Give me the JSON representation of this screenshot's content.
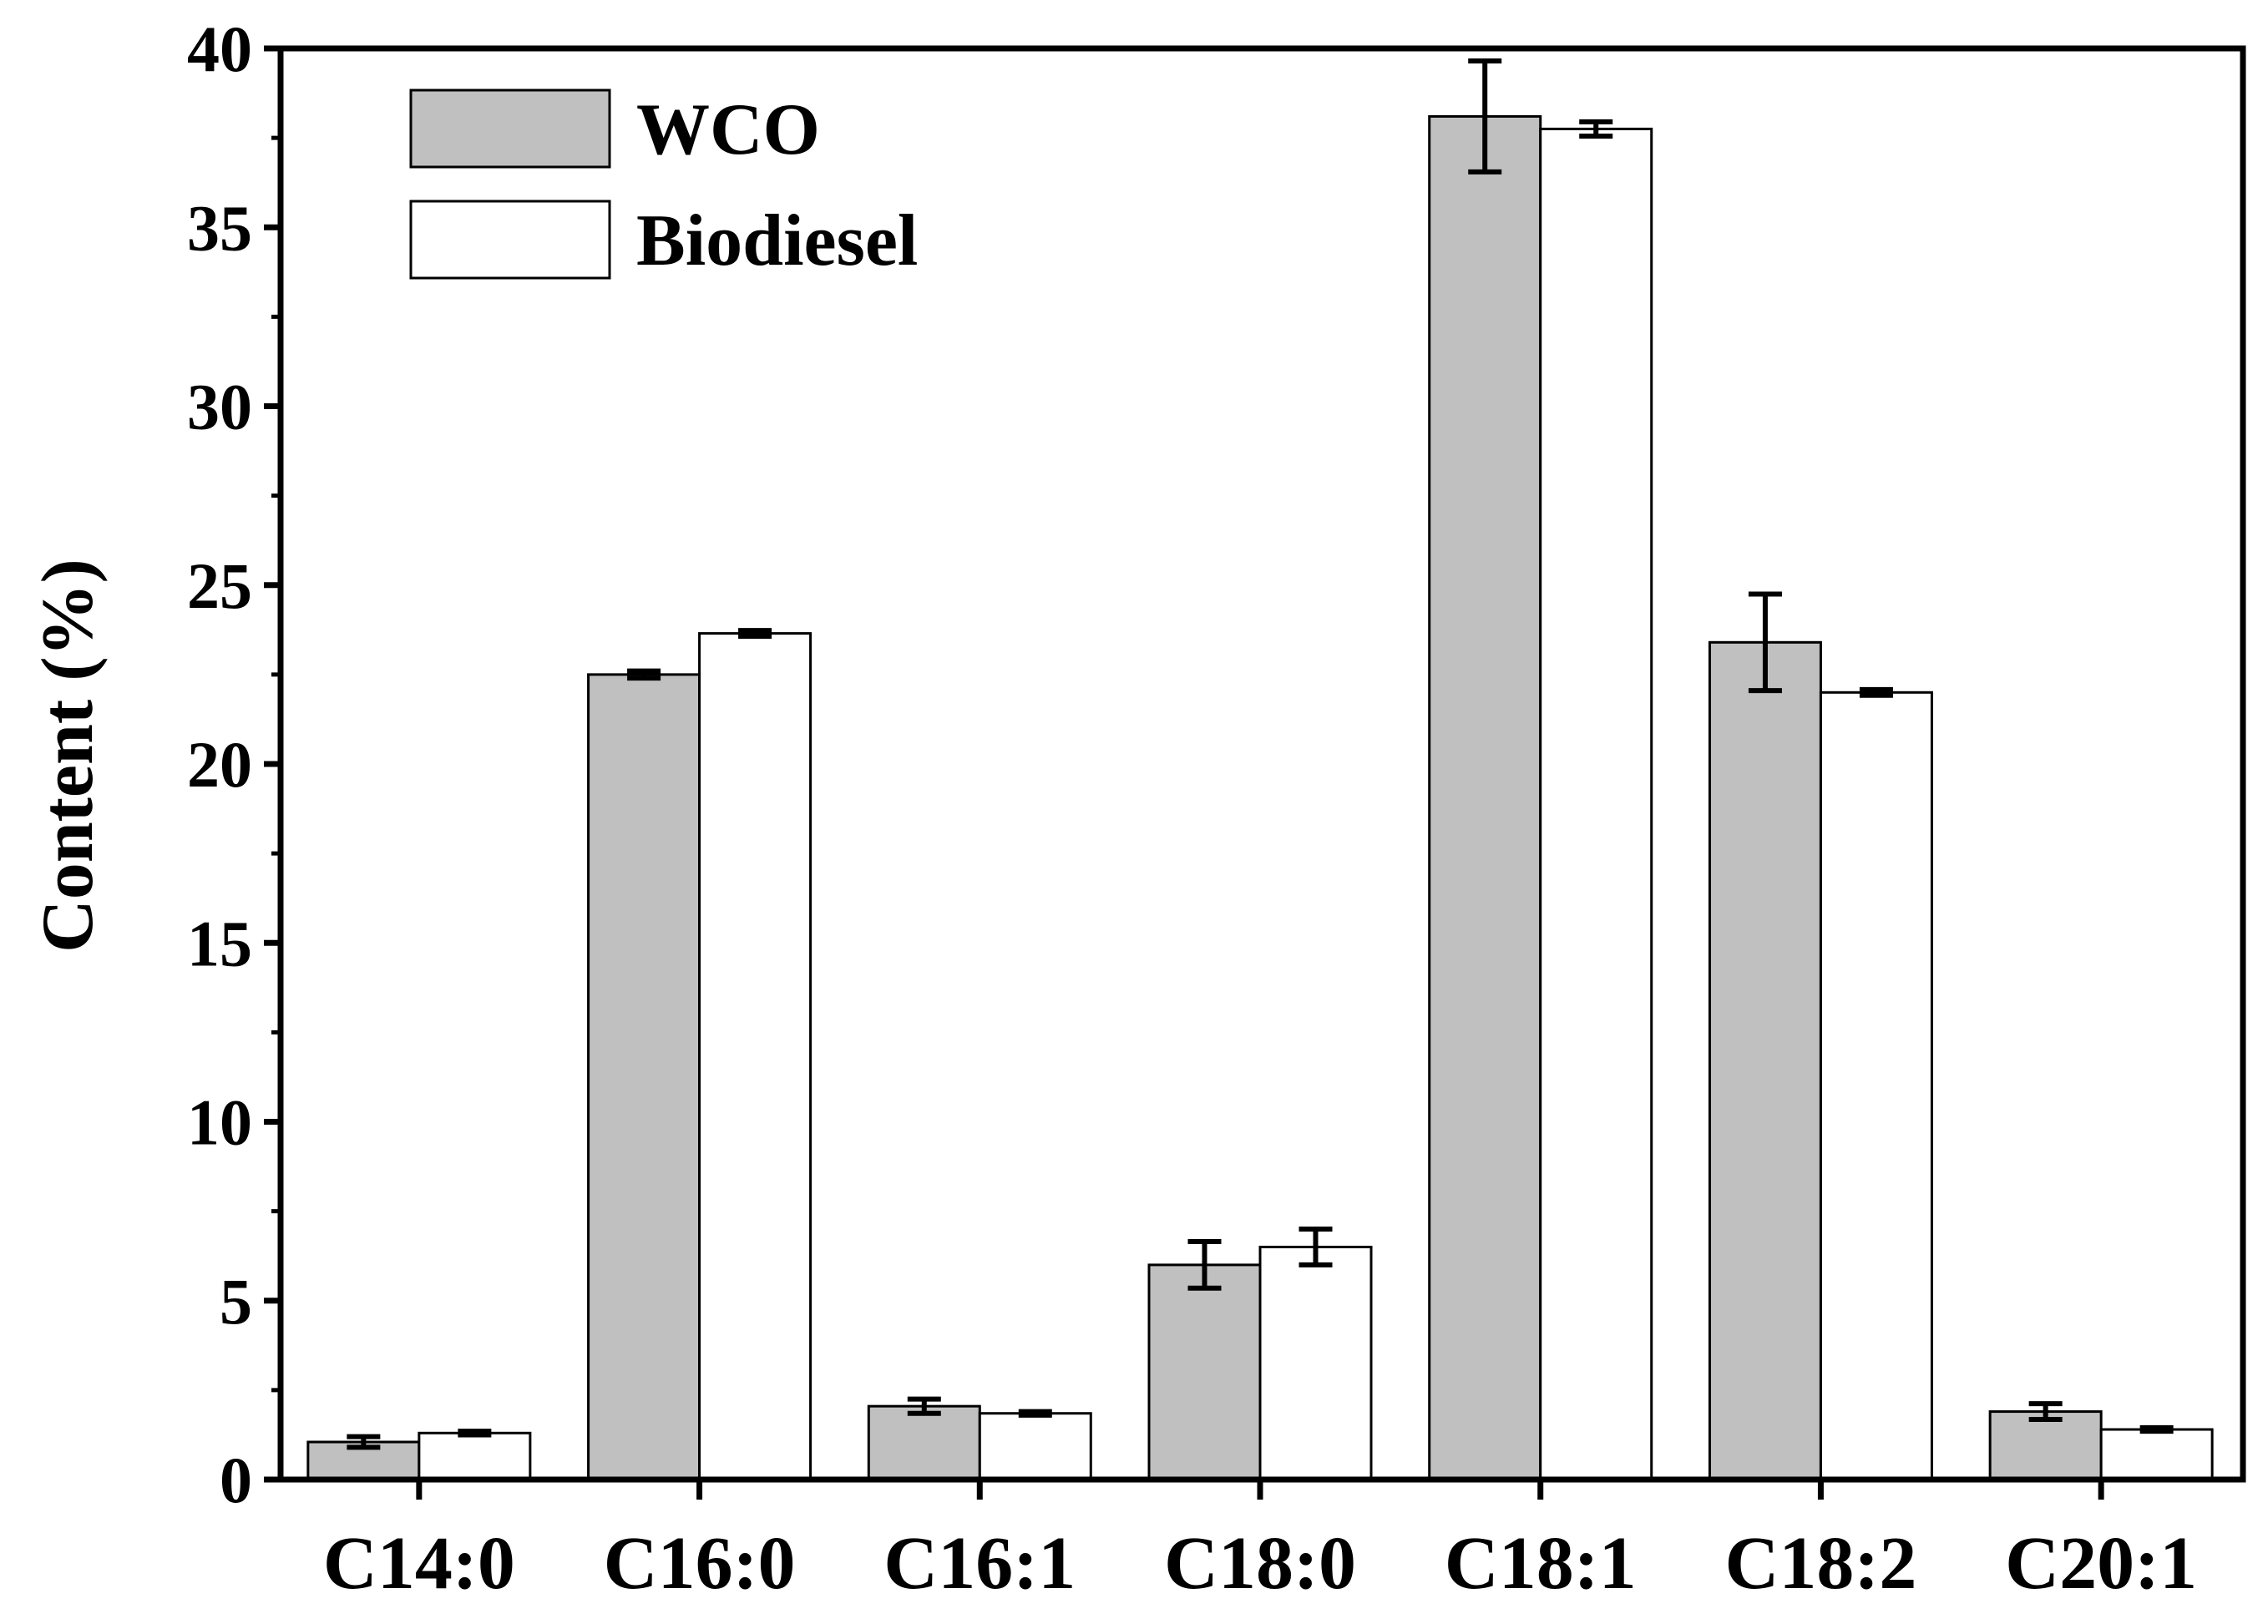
{
  "chart_data": {
    "type": "bar",
    "title": "",
    "xlabel": "",
    "ylabel": "Content (%)",
    "ylim": [
      0,
      40
    ],
    "yticks": [
      0,
      5,
      10,
      15,
      20,
      25,
      30,
      35,
      40
    ],
    "ytick_labels": [
      "0",
      "5",
      "10",
      "15",
      "20",
      "25",
      "30",
      "35",
      "40"
    ],
    "grid": false,
    "legend_position": "top-left",
    "categories": [
      "C14:0",
      "C16:0",
      "C16:1",
      "C18:0",
      "C18:1",
      "C18:2",
      "C20:1"
    ],
    "series": [
      {
        "name": "WCO",
        "color": "#c0c0c0",
        "values": [
          1.05,
          22.5,
          2.05,
          6.0,
          38.1,
          23.4,
          1.9
        ],
        "errors": [
          0.15,
          0.1,
          0.2,
          0.65,
          1.55,
          1.35,
          0.22
        ]
      },
      {
        "name": "Biodiesel",
        "color": "#ffffff",
        "values": [
          1.3,
          23.65,
          1.85,
          6.5,
          37.75,
          22.0,
          1.4
        ],
        "errors": [
          0.05,
          0.08,
          0.05,
          0.5,
          0.2,
          0.08,
          0.05
        ]
      }
    ]
  }
}
